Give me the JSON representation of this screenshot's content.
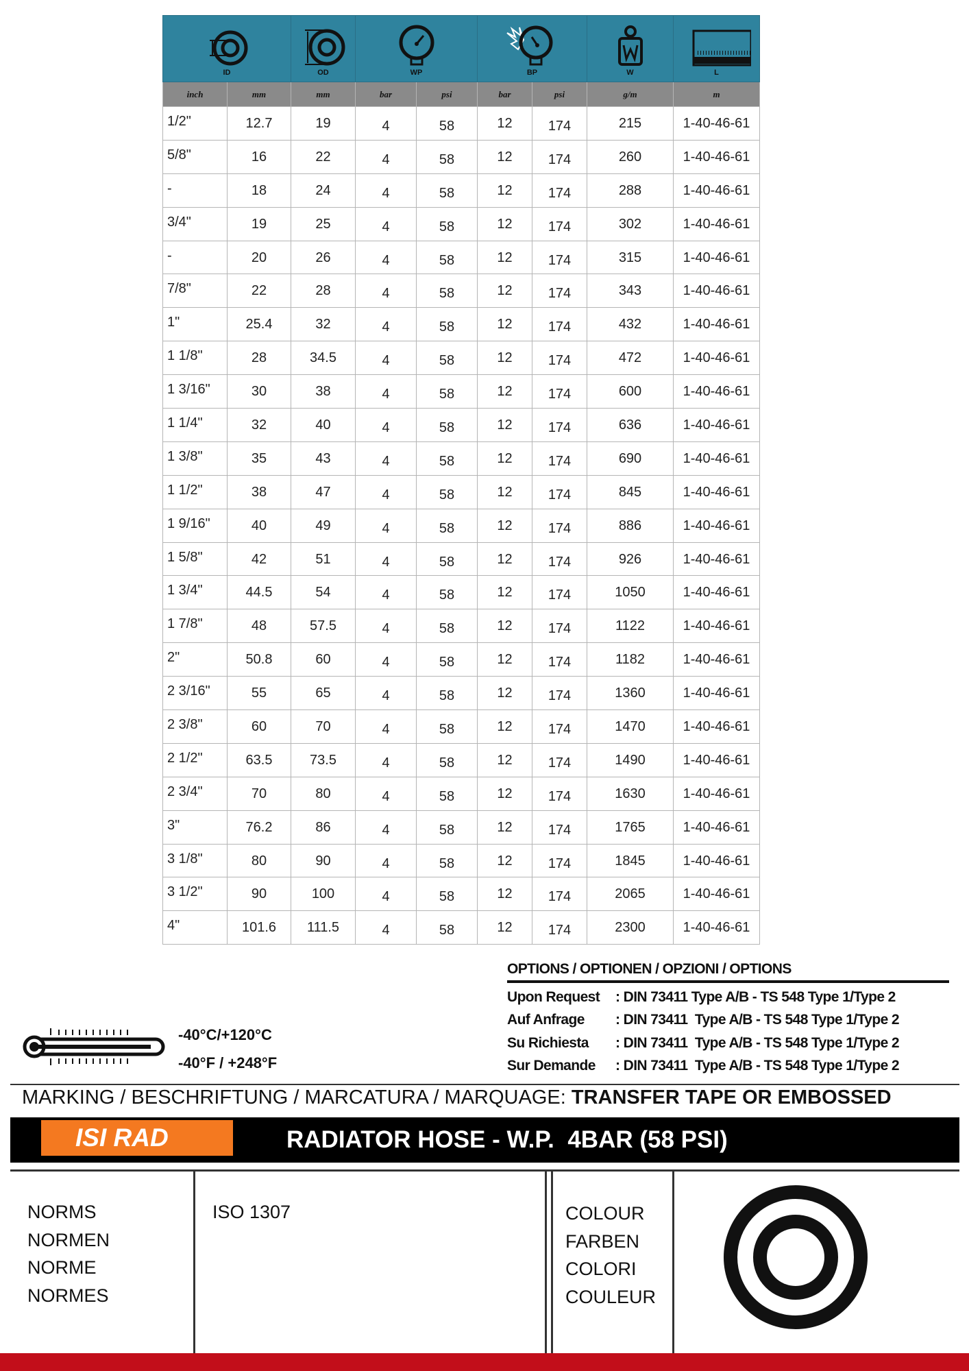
{
  "header": {
    "icons": [
      "ID",
      "OD",
      "WP",
      "BP",
      "W",
      "L"
    ],
    "units": [
      "inch",
      "mm",
      "mm",
      "bar",
      "psi",
      "bar",
      "psi",
      "g/m",
      "m"
    ]
  },
  "rows": [
    [
      "1/2\"",
      "12.7",
      "19",
      "4",
      "58",
      "12",
      "174",
      "215",
      "1-40-46-61"
    ],
    [
      "5/8\"",
      "16",
      "22",
      "4",
      "58",
      "12",
      "174",
      "260",
      "1-40-46-61"
    ],
    [
      "-",
      "18",
      "24",
      "4",
      "58",
      "12",
      "174",
      "288",
      "1-40-46-61"
    ],
    [
      "3/4\"",
      "19",
      "25",
      "4",
      "58",
      "12",
      "174",
      "302",
      "1-40-46-61"
    ],
    [
      "-",
      "20",
      "26",
      "4",
      "58",
      "12",
      "174",
      "315",
      "1-40-46-61"
    ],
    [
      "7/8\"",
      "22",
      "28",
      "4",
      "58",
      "12",
      "174",
      "343",
      "1-40-46-61"
    ],
    [
      " 1\"",
      "25.4",
      "32",
      "4",
      "58",
      "12",
      "174",
      "432",
      "1-40-46-61"
    ],
    [
      "1 1/8\"",
      "28",
      "34.5",
      "4",
      "58",
      "12",
      "174",
      "472",
      "1-40-46-61"
    ],
    [
      "1 3/16\"",
      "30",
      "38",
      "4",
      "58",
      "12",
      "174",
      "600",
      "1-40-46-61"
    ],
    [
      "1 1/4\"",
      "32",
      "40",
      "4",
      "58",
      "12",
      "174",
      "636",
      "1-40-46-61"
    ],
    [
      "1 3/8\"",
      "35",
      "43",
      "4",
      "58",
      "12",
      "174",
      "690",
      "1-40-46-61"
    ],
    [
      "1 1/2\"",
      "38",
      "47",
      "4",
      "58",
      "12",
      "174",
      "845",
      "1-40-46-61"
    ],
    [
      "1 9/16\"",
      "40",
      "49",
      "4",
      "58",
      "12",
      "174",
      "886",
      "1-40-46-61"
    ],
    [
      "1 5/8\"",
      "42",
      "51",
      "4",
      "58",
      "12",
      "174",
      "926",
      "1-40-46-61"
    ],
    [
      "1 3/4\"",
      "44.5",
      "54",
      "4",
      "58",
      "12",
      "174",
      "1050",
      "1-40-46-61"
    ],
    [
      "1 7/8\"",
      "48",
      "57.5",
      "4",
      "58",
      "12",
      "174",
      "1122",
      "1-40-46-61"
    ],
    [
      "2\"",
      "50.8",
      "60",
      "4",
      "58",
      "12",
      "174",
      "1182",
      "1-40-46-61"
    ],
    [
      "2 3/16\"",
      "55",
      "65",
      "4",
      "58",
      "12",
      "174",
      "1360",
      "1-40-46-61"
    ],
    [
      "2 3/8\"",
      "60",
      "70",
      "4",
      "58",
      "12",
      "174",
      "1470",
      "1-40-46-61"
    ],
    [
      "2 1/2\"",
      "63.5",
      "73.5",
      "4",
      "58",
      "12",
      "174",
      "1490",
      "1-40-46-61"
    ],
    [
      "2 3/4\"",
      "70",
      "80",
      "4",
      "58",
      "12",
      "174",
      "1630",
      "1-40-46-61"
    ],
    [
      "3\"",
      "76.2",
      "86",
      "4",
      "58",
      "12",
      "174",
      "1765",
      "1-40-46-61"
    ],
    [
      "3 1/8\"",
      "80",
      "90",
      "4",
      "58",
      "12",
      "174",
      "1845",
      "1-40-46-61"
    ],
    [
      "3 1/2\"",
      "90",
      "100",
      "4",
      "58",
      "12",
      "174",
      "2065",
      "1-40-46-61"
    ],
    [
      "4\"",
      "101.6",
      "111.5",
      "4",
      "58",
      "12",
      "174",
      "2300",
      "1-40-46-61"
    ]
  ],
  "options": {
    "title": "OPTIONS / OPTIONEN / OPZIONI / OPTIONS",
    "items": [
      {
        "label": "Upon Request",
        "value": ": DIN 73411 Type A/B - TS 548 Type 1/Type 2"
      },
      {
        "label": "Auf Anfrage",
        "value": ": DIN 73411  Type A/B - TS 548 Type 1/Type 2"
      },
      {
        "label": "Su Richiesta",
        "value": ": DIN 73411  Type A/B - TS 548 Type 1/Type 2"
      },
      {
        "label": "Sur Demande",
        "value": ": DIN 73411  Type A/B - TS 548 Type 1/Type 2"
      }
    ]
  },
  "temperature": {
    "celsius": "-40°C/+120°C",
    "fahrenheit": "-40°F / +248°F"
  },
  "marking": {
    "label": "MARKING / BESCHRIFTUNG / MARCATURA / MARQUAGE: ",
    "value": "TRANSFER TAPE OR EMBOSSED"
  },
  "product": {
    "badge": "ISI RAD",
    "title": "RADIATOR HOSE - W.P.  4BAR (58 PSI)"
  },
  "norms": {
    "labels": [
      "NORMS",
      "NORMEN",
      "NORME",
      "NORMES"
    ],
    "value": "ISO 1307"
  },
  "colour": {
    "labels": [
      "COLOUR",
      "FARBEN",
      "COLORI",
      "COULEUR"
    ],
    "swatch": "#111111"
  },
  "colors": {
    "header": "#2f839e",
    "units": "#8a8a8a",
    "badge": "#f47920",
    "footer": "#c20e1a"
  }
}
